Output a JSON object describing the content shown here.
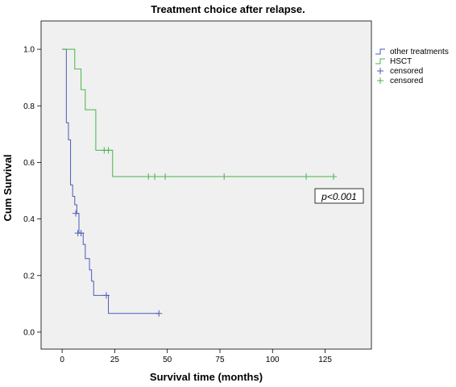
{
  "chart_data": {
    "type": "line",
    "step": true,
    "title": "Treatment choice after relapse.",
    "xlabel": "Survival time (months)",
    "ylabel": "Cum Survival",
    "xlim": [
      -10,
      147
    ],
    "ylim": [
      -0.06,
      1.1
    ],
    "x_ticks": [
      0,
      25,
      50,
      75,
      100,
      125
    ],
    "y_ticks": [
      0.0,
      0.2,
      0.4,
      0.6,
      0.8,
      1.0
    ],
    "y_tick_labels": [
      "0.0",
      "0.2",
      "0.4",
      "0.6",
      "0.8",
      "1.0"
    ],
    "grid": false,
    "legend_position": "right",
    "annotation": "p<0.001",
    "series": [
      {
        "name": "other treatments",
        "color": "#4b5bb8",
        "steps": [
          [
            0,
            1.0
          ],
          [
            2,
            0.74
          ],
          [
            3,
            0.68
          ],
          [
            4,
            0.52
          ],
          [
            5,
            0.48
          ],
          [
            6,
            0.45
          ],
          [
            7,
            0.42
          ],
          [
            8,
            0.35
          ],
          [
            10,
            0.31
          ],
          [
            11,
            0.26
          ],
          [
            13,
            0.22
          ],
          [
            14,
            0.18
          ],
          [
            15,
            0.13
          ],
          [
            22,
            0.066
          ],
          [
            46,
            0.066
          ]
        ],
        "censor_label": "censored",
        "censored": [
          [
            6.5,
            0.42
          ],
          [
            7.5,
            0.35
          ],
          [
            9,
            0.35
          ],
          [
            21,
            0.13
          ],
          [
            46,
            0.066
          ]
        ]
      },
      {
        "name": "HSCT",
        "color": "#46b54b",
        "steps": [
          [
            0,
            1.0
          ],
          [
            6,
            0.93
          ],
          [
            9,
            0.857
          ],
          [
            11,
            0.786
          ],
          [
            16,
            0.643
          ],
          [
            24,
            0.55
          ],
          [
            129,
            0.55
          ]
        ],
        "censor_label": "censored",
        "censored": [
          [
            20,
            0.643
          ],
          [
            22,
            0.643
          ],
          [
            41,
            0.55
          ],
          [
            44,
            0.55
          ],
          [
            49,
            0.55
          ],
          [
            77,
            0.55
          ],
          [
            116,
            0.55
          ],
          [
            129,
            0.55
          ]
        ]
      }
    ]
  }
}
